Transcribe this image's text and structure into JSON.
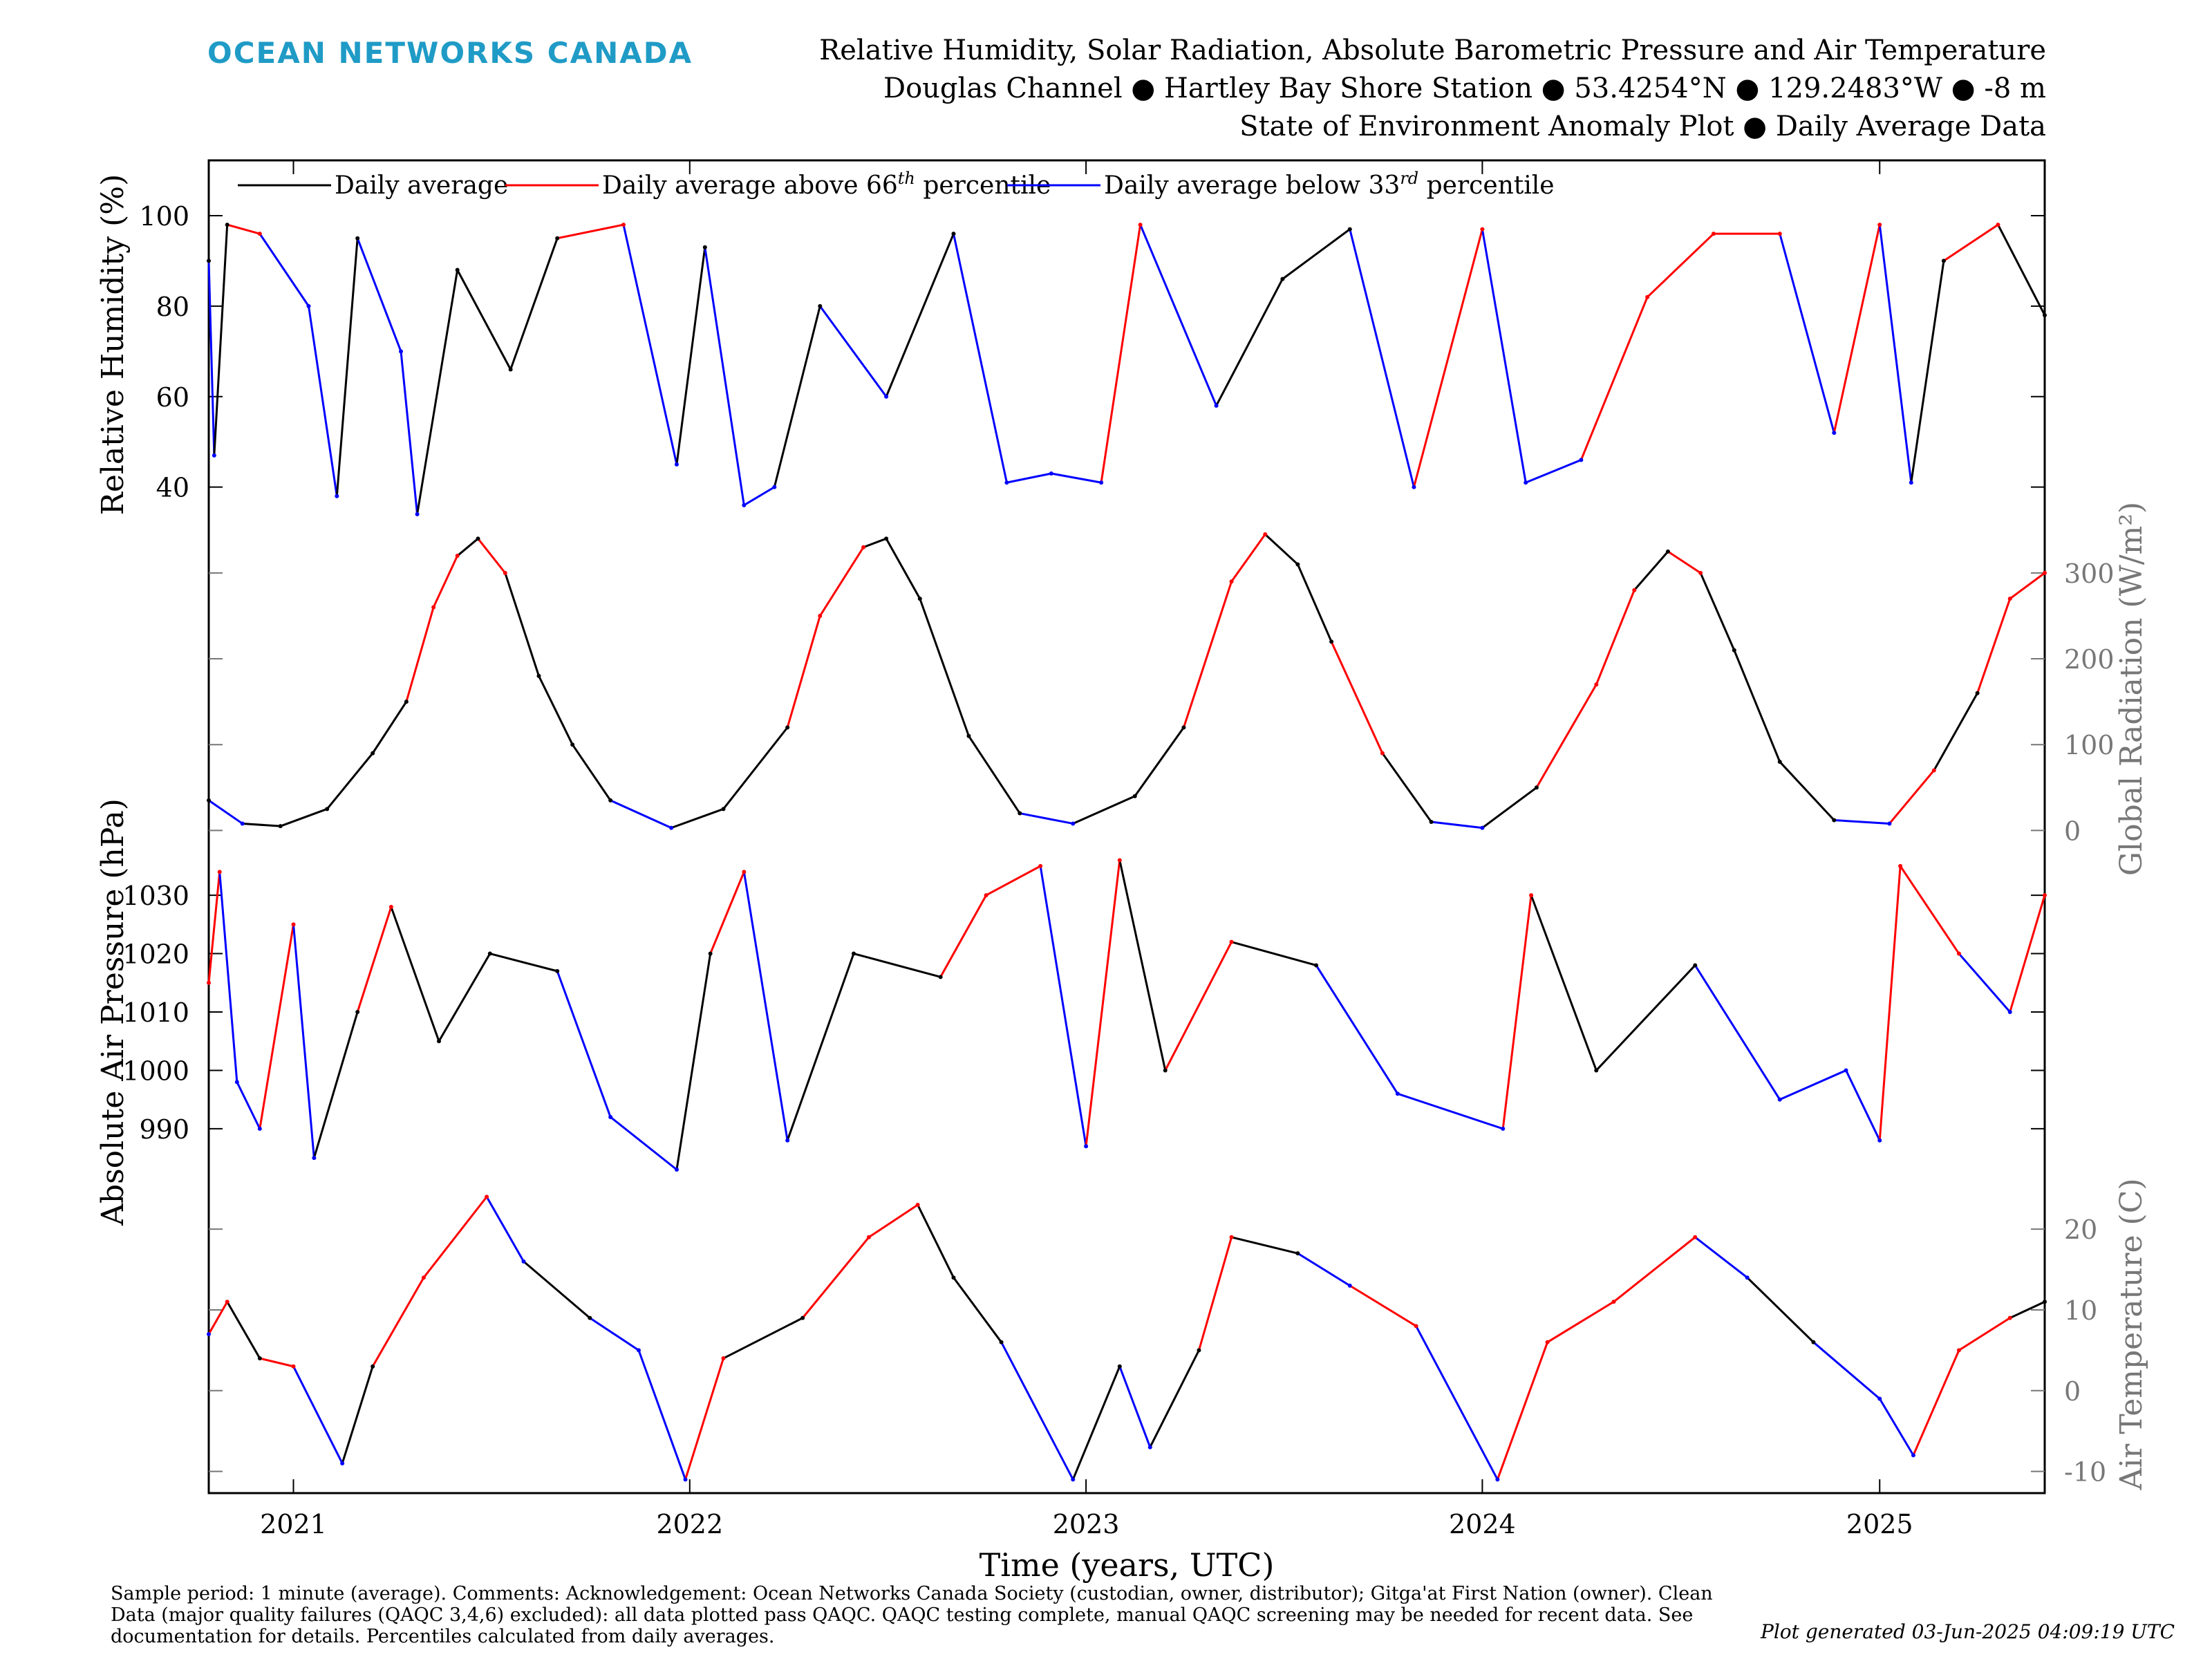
{
  "header": {
    "brand": "OCEAN NETWORKS CANADA",
    "title_line1": "Relative Humidity, Solar Radiation, Absolute Barometric Pressure and Air Temperature",
    "title_line2": "Douglas Channel ● Hartley Bay Shore Station ● 53.4254°N ● 129.2483°W ● -8 m",
    "title_line3": "State of Environment Anomaly Plot ● Daily Average Data"
  },
  "legend": {
    "black": "Daily average",
    "red_prefix": "Daily average above 66",
    "red_sup": "th",
    "red_suffix": " percentile",
    "blue_prefix": "Daily average below 33",
    "blue_sup": "rd",
    "blue_suffix": " percentile"
  },
  "colors": {
    "average": "#000000",
    "above": "#ff0000",
    "below": "#0000ff",
    "brand": "#1f9bc6",
    "right_axis": "#777777"
  },
  "footer": {
    "text": "Sample period: 1 minute (average). Comments: Acknowledgement: Ocean Networks Canada Society (custodian, owner, distributor); Gitga'at First Nation (owner). Clean Data (major quality failures (QAQC 3,4,6) excluded): all data plotted pass QAQC. QAQC testing complete, manual QAQC screening may be needed for recent data. See documentation for details. Percentiles calculated from daily averages.",
    "generated": "Plot generated 03-Jun-2025 04:09:19 UTC"
  },
  "chart_data": {
    "type": "line",
    "xlabel": "Time (years, UTC)",
    "x_range": [
      "2020-10-15",
      "2025-06-02"
    ],
    "x_ticks": [
      "2021",
      "2022",
      "2023",
      "2024",
      "2025"
    ],
    "panels": [
      {
        "id": "relative_humidity",
        "ylabel": "Relative Humidity (%)",
        "y_axis_side": "left",
        "ylim": [
          32,
          111
        ],
        "yticks": [
          40,
          60,
          80,
          100
        ],
        "series": [
          {
            "x": "2020-10-15",
            "y": 90,
            "class": "average"
          },
          {
            "x": "2020-10-20",
            "y": 47,
            "class": "below"
          },
          {
            "x": "2020-11-01",
            "y": 98,
            "class": "average"
          },
          {
            "x": "2020-12-01",
            "y": 96,
            "class": "above"
          },
          {
            "x": "2021-01-15",
            "y": 80,
            "class": "below"
          },
          {
            "x": "2021-02-10",
            "y": 38,
            "class": "below"
          },
          {
            "x": "2021-03-01",
            "y": 95,
            "class": "average"
          },
          {
            "x": "2021-04-10",
            "y": 70,
            "class": "below"
          },
          {
            "x": "2021-04-25",
            "y": 34,
            "class": "below"
          },
          {
            "x": "2021-06-01",
            "y": 88,
            "class": "average"
          },
          {
            "x": "2021-07-20",
            "y": 66,
            "class": "average"
          },
          {
            "x": "2021-09-01",
            "y": 95,
            "class": "average"
          },
          {
            "x": "2021-11-01",
            "y": 98,
            "class": "above"
          },
          {
            "x": "2021-12-20",
            "y": 45,
            "class": "below"
          },
          {
            "x": "2022-01-15",
            "y": 93,
            "class": "average"
          },
          {
            "x": "2022-02-20",
            "y": 36,
            "class": "below"
          },
          {
            "x": "2022-03-20",
            "y": 40,
            "class": "below"
          },
          {
            "x": "2022-05-01",
            "y": 80,
            "class": "average"
          },
          {
            "x": "2022-07-01",
            "y": 60,
            "class": "below"
          },
          {
            "x": "2022-09-01",
            "y": 96,
            "class": "average"
          },
          {
            "x": "2022-10-20",
            "y": 41,
            "class": "below"
          },
          {
            "x": "2022-11-30",
            "y": 43,
            "class": "below"
          },
          {
            "x": "2023-01-15",
            "y": 41,
            "class": "below"
          },
          {
            "x": "2023-02-20",
            "y": 98,
            "class": "above"
          },
          {
            "x": "2023-05-01",
            "y": 58,
            "class": "below"
          },
          {
            "x": "2023-07-01",
            "y": 86,
            "class": "average"
          },
          {
            "x": "2023-09-01",
            "y": 97,
            "class": "average"
          },
          {
            "x": "2023-10-30",
            "y": 40,
            "class": "below"
          },
          {
            "x": "2024-01-01",
            "y": 97,
            "class": "above"
          },
          {
            "x": "2024-02-10",
            "y": 41,
            "class": "below"
          },
          {
            "x": "2024-04-01",
            "y": 46,
            "class": "below"
          },
          {
            "x": "2024-06-01",
            "y": 82,
            "class": "above"
          },
          {
            "x": "2024-08-01",
            "y": 96,
            "class": "above"
          },
          {
            "x": "2024-10-01",
            "y": 96,
            "class": "above"
          },
          {
            "x": "2024-11-20",
            "y": 52,
            "class": "below"
          },
          {
            "x": "2025-01-01",
            "y": 98,
            "class": "above"
          },
          {
            "x": "2025-01-30",
            "y": 41,
            "class": "below"
          },
          {
            "x": "2025-03-01",
            "y": 90,
            "class": "average"
          },
          {
            "x": "2025-04-20",
            "y": 98,
            "class": "above"
          },
          {
            "x": "2025-06-02",
            "y": 78,
            "class": "average"
          }
        ]
      },
      {
        "id": "global_radiation",
        "ylabel": "Global Radiation (W/m²)",
        "y_axis_side": "right",
        "ylim": [
          -15,
          345
        ],
        "yticks": [
          0,
          100,
          200,
          300
        ],
        "series": [
          {
            "x": "2020-10-15",
            "y": 35,
            "class": "average"
          },
          {
            "x": "2020-11-15",
            "y": 8,
            "class": "below"
          },
          {
            "x": "2020-12-20",
            "y": 5,
            "class": "average"
          },
          {
            "x": "2021-02-01",
            "y": 25,
            "class": "average"
          },
          {
            "x": "2021-03-15",
            "y": 90,
            "class": "average"
          },
          {
            "x": "2021-04-15",
            "y": 150,
            "class": "average"
          },
          {
            "x": "2021-05-10",
            "y": 260,
            "class": "above"
          },
          {
            "x": "2021-06-01",
            "y": 320,
            "class": "above"
          },
          {
            "x": "2021-06-20",
            "y": 340,
            "class": "average"
          },
          {
            "x": "2021-07-15",
            "y": 300,
            "class": "above"
          },
          {
            "x": "2021-08-15",
            "y": 180,
            "class": "average"
          },
          {
            "x": "2021-09-15",
            "y": 100,
            "class": "average"
          },
          {
            "x": "2021-10-20",
            "y": 35,
            "class": "average"
          },
          {
            "x": "2021-12-15",
            "y": 3,
            "class": "below"
          },
          {
            "x": "2022-02-01",
            "y": 25,
            "class": "average"
          },
          {
            "x": "2022-04-01",
            "y": 120,
            "class": "average"
          },
          {
            "x": "2022-05-01",
            "y": 250,
            "class": "above"
          },
          {
            "x": "2022-06-10",
            "y": 330,
            "class": "above"
          },
          {
            "x": "2022-07-01",
            "y": 340,
            "class": "average"
          },
          {
            "x": "2022-08-01",
            "y": 270,
            "class": "average"
          },
          {
            "x": "2022-09-15",
            "y": 110,
            "class": "average"
          },
          {
            "x": "2022-11-01",
            "y": 20,
            "class": "average"
          },
          {
            "x": "2022-12-20",
            "y": 8,
            "class": "below"
          },
          {
            "x": "2023-02-15",
            "y": 40,
            "class": "average"
          },
          {
            "x": "2023-04-01",
            "y": 120,
            "class": "average"
          },
          {
            "x": "2023-05-15",
            "y": 290,
            "class": "above"
          },
          {
            "x": "2023-06-15",
            "y": 345,
            "class": "above"
          },
          {
            "x": "2023-07-15",
            "y": 310,
            "class": "average"
          },
          {
            "x": "2023-08-15",
            "y": 220,
            "class": "average"
          },
          {
            "x": "2023-10-01",
            "y": 90,
            "class": "above"
          },
          {
            "x": "2023-11-15",
            "y": 10,
            "class": "average"
          },
          {
            "x": "2024-01-01",
            "y": 3,
            "class": "below"
          },
          {
            "x": "2024-02-20",
            "y": 50,
            "class": "average"
          },
          {
            "x": "2024-04-15",
            "y": 170,
            "class": "above"
          },
          {
            "x": "2024-05-20",
            "y": 280,
            "class": "above"
          },
          {
            "x": "2024-06-20",
            "y": 325,
            "class": "average"
          },
          {
            "x": "2024-07-20",
            "y": 300,
            "class": "above"
          },
          {
            "x": "2024-08-20",
            "y": 210,
            "class": "average"
          },
          {
            "x": "2024-10-01",
            "y": 80,
            "class": "average"
          },
          {
            "x": "2024-11-20",
            "y": 12,
            "class": "average"
          },
          {
            "x": "2025-01-10",
            "y": 8,
            "class": "below"
          },
          {
            "x": "2025-02-20",
            "y": 70,
            "class": "above"
          },
          {
            "x": "2025-04-01",
            "y": 160,
            "class": "average"
          },
          {
            "x": "2025-05-01",
            "y": 270,
            "class": "above"
          },
          {
            "x": "2025-06-02",
            "y": 300,
            "class": "above"
          }
        ]
      },
      {
        "id": "air_pressure",
        "ylabel": "Absolute Air Pressure (hPa)",
        "y_axis_side": "left",
        "ylim": [
          983,
          1037
        ],
        "yticks": [
          990,
          1000,
          1010,
          1020,
          1030
        ],
        "series": [
          {
            "x": "2020-10-15",
            "y": 1015,
            "class": "above"
          },
          {
            "x": "2020-10-25",
            "y": 1034,
            "class": "above"
          },
          {
            "x": "2020-11-10",
            "y": 998,
            "class": "below"
          },
          {
            "x": "2020-12-01",
            "y": 990,
            "class": "below"
          },
          {
            "x": "2021-01-01",
            "y": 1025,
            "class": "above"
          },
          {
            "x": "2021-01-20",
            "y": 985,
            "class": "below"
          },
          {
            "x": "2021-03-01",
            "y": 1010,
            "class": "average"
          },
          {
            "x": "2021-04-01",
            "y": 1028,
            "class": "above"
          },
          {
            "x": "2021-05-15",
            "y": 1005,
            "class": "average"
          },
          {
            "x": "2021-07-01",
            "y": 1020,
            "class": "average"
          },
          {
            "x": "2021-09-01",
            "y": 1017,
            "class": "average"
          },
          {
            "x": "2021-10-20",
            "y": 992,
            "class": "below"
          },
          {
            "x": "2021-12-20",
            "y": 983,
            "class": "below"
          },
          {
            "x": "2022-01-20",
            "y": 1020,
            "class": "average"
          },
          {
            "x": "2022-02-20",
            "y": 1034,
            "class": "above"
          },
          {
            "x": "2022-04-01",
            "y": 988,
            "class": "below"
          },
          {
            "x": "2022-06-01",
            "y": 1020,
            "class": "average"
          },
          {
            "x": "2022-08-20",
            "y": 1016,
            "class": "average"
          },
          {
            "x": "2022-10-01",
            "y": 1030,
            "class": "above"
          },
          {
            "x": "2022-11-20",
            "y": 1035,
            "class": "above"
          },
          {
            "x": "2023-01-01",
            "y": 987,
            "class": "below"
          },
          {
            "x": "2023-02-01",
            "y": 1036,
            "class": "above"
          },
          {
            "x": "2023-03-15",
            "y": 1000,
            "class": "average"
          },
          {
            "x": "2023-05-15",
            "y": 1022,
            "class": "above"
          },
          {
            "x": "2023-08-01",
            "y": 1018,
            "class": "average"
          },
          {
            "x": "2023-10-15",
            "y": 996,
            "class": "below"
          },
          {
            "x": "2024-01-20",
            "y": 990,
            "class": "below"
          },
          {
            "x": "2024-02-15",
            "y": 1030,
            "class": "above"
          },
          {
            "x": "2024-04-15",
            "y": 1000,
            "class": "average"
          },
          {
            "x": "2024-07-15",
            "y": 1018,
            "class": "average"
          },
          {
            "x": "2024-10-01",
            "y": 995,
            "class": "below"
          },
          {
            "x": "2024-12-01",
            "y": 1000,
            "class": "below"
          },
          {
            "x": "2025-01-01",
            "y": 988,
            "class": "below"
          },
          {
            "x": "2025-01-20",
            "y": 1035,
            "class": "above"
          },
          {
            "x": "2025-03-15",
            "y": 1020,
            "class": "above"
          },
          {
            "x": "2025-05-01",
            "y": 1010,
            "class": "below"
          },
          {
            "x": "2025-06-02",
            "y": 1030,
            "class": "above"
          }
        ]
      },
      {
        "id": "air_temperature",
        "ylabel": "Air Temperature (C)",
        "y_axis_side": "right",
        "ylim": [
          -12,
          26
        ],
        "yticks": [
          -10,
          0,
          10,
          20
        ],
        "series": [
          {
            "x": "2020-10-15",
            "y": 7,
            "class": "below"
          },
          {
            "x": "2020-11-01",
            "y": 11,
            "class": "above"
          },
          {
            "x": "2020-12-01",
            "y": 4,
            "class": "average"
          },
          {
            "x": "2021-01-01",
            "y": 3,
            "class": "above"
          },
          {
            "x": "2021-02-15",
            "y": -9,
            "class": "below"
          },
          {
            "x": "2021-03-15",
            "y": 3,
            "class": "average"
          },
          {
            "x": "2021-05-01",
            "y": 14,
            "class": "above"
          },
          {
            "x": "2021-06-28",
            "y": 24,
            "class": "above"
          },
          {
            "x": "2021-08-01",
            "y": 16,
            "class": "below"
          },
          {
            "x": "2021-10-01",
            "y": 9,
            "class": "average"
          },
          {
            "x": "2021-11-15",
            "y": 5,
            "class": "below"
          },
          {
            "x": "2021-12-28",
            "y": -11,
            "class": "below"
          },
          {
            "x": "2022-02-01",
            "y": 4,
            "class": "above"
          },
          {
            "x": "2022-04-15",
            "y": 9,
            "class": "average"
          },
          {
            "x": "2022-06-15",
            "y": 19,
            "class": "above"
          },
          {
            "x": "2022-07-30",
            "y": 23,
            "class": "above"
          },
          {
            "x": "2022-09-01",
            "y": 14,
            "class": "average"
          },
          {
            "x": "2022-10-15",
            "y": 6,
            "class": "average"
          },
          {
            "x": "2022-12-20",
            "y": -11,
            "class": "below"
          },
          {
            "x": "2023-02-01",
            "y": 3,
            "class": "average"
          },
          {
            "x": "2023-03-01",
            "y": -7,
            "class": "below"
          },
          {
            "x": "2023-04-15",
            "y": 5,
            "class": "average"
          },
          {
            "x": "2023-05-15",
            "y": 19,
            "class": "above"
          },
          {
            "x": "2023-07-15",
            "y": 17,
            "class": "average"
          },
          {
            "x": "2023-09-01",
            "y": 13,
            "class": "below"
          },
          {
            "x": "2023-11-01",
            "y": 8,
            "class": "above"
          },
          {
            "x": "2024-01-15",
            "y": -11,
            "class": "below"
          },
          {
            "x": "2024-03-01",
            "y": 6,
            "class": "above"
          },
          {
            "x": "2024-05-01",
            "y": 11,
            "class": "above"
          },
          {
            "x": "2024-07-15",
            "y": 19,
            "class": "above"
          },
          {
            "x": "2024-09-01",
            "y": 14,
            "class": "below"
          },
          {
            "x": "2024-11-01",
            "y": 6,
            "class": "average"
          },
          {
            "x": "2025-01-01",
            "y": -1,
            "class": "below"
          },
          {
            "x": "2025-02-01",
            "y": -8,
            "class": "below"
          },
          {
            "x": "2025-03-15",
            "y": 5,
            "class": "above"
          },
          {
            "x": "2025-05-01",
            "y": 9,
            "class": "above"
          },
          {
            "x": "2025-06-02",
            "y": 11,
            "class": "average"
          }
        ]
      }
    ]
  }
}
